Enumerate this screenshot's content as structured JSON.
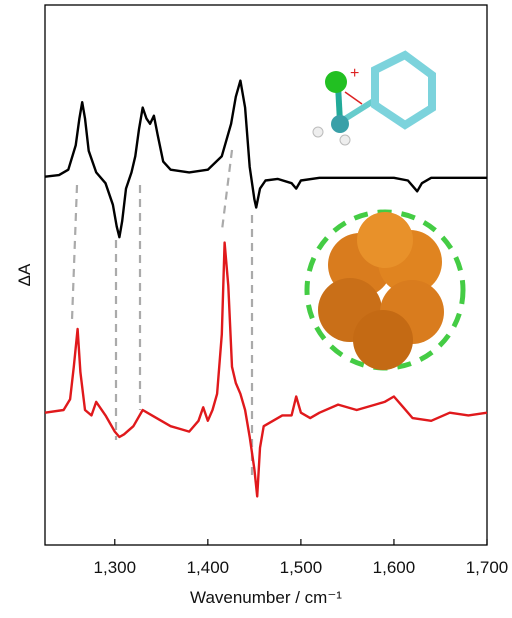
{
  "chart_data": {
    "type": "line",
    "x_label": "Wavenumber / cm⁻¹",
    "y_label": "ΔA",
    "xlim": [
      1225,
      1700
    ],
    "ylim": [
      0,
      10
    ],
    "xticks": [
      {
        "value": 1300,
        "label": "1,300"
      },
      {
        "value": 1400,
        "label": "1,400"
      },
      {
        "value": 1500,
        "label": "1,500"
      },
      {
        "value": 1600,
        "label": "1,600"
      },
      {
        "value": 1700,
        "label": "1,700"
      }
    ],
    "series": [
      {
        "color": "#000000",
        "x": [
          1225,
          1240,
          1250,
          1258,
          1262,
          1265,
          1268,
          1272,
          1280,
          1290,
          1298,
          1302,
          1305,
          1308,
          1312,
          1318,
          1322,
          1326,
          1330,
          1334,
          1338,
          1342,
          1346,
          1352,
          1360,
          1380,
          1400,
          1415,
          1425,
          1430,
          1435,
          1440,
          1445,
          1450,
          1452,
          1456,
          1462,
          1475,
          1490,
          1495,
          1500,
          1520,
          1560,
          1600,
          1615,
          1620,
          1625,
          1630,
          1640,
          1670,
          1700
        ],
        "values": [
          6.82,
          6.85,
          6.95,
          7.4,
          7.9,
          8.2,
          7.9,
          7.3,
          6.9,
          6.7,
          6.3,
          5.9,
          5.7,
          6.0,
          6.6,
          6.9,
          7.2,
          7.7,
          8.1,
          7.9,
          7.8,
          7.95,
          7.6,
          7.1,
          6.95,
          6.9,
          6.95,
          7.2,
          7.8,
          8.3,
          8.6,
          8.1,
          7.0,
          6.4,
          6.25,
          6.6,
          6.75,
          6.78,
          6.7,
          6.6,
          6.75,
          6.8,
          6.8,
          6.8,
          6.75,
          6.65,
          6.55,
          6.7,
          6.8,
          6.8,
          6.8
        ]
      },
      {
        "color": "#e0191c",
        "x": [
          1225,
          1245,
          1252,
          1256,
          1260,
          1263,
          1268,
          1275,
          1280,
          1290,
          1300,
          1305,
          1310,
          1320,
          1330,
          1340,
          1350,
          1360,
          1370,
          1380,
          1390,
          1395,
          1400,
          1405,
          1410,
          1415,
          1418,
          1422,
          1426,
          1430,
          1435,
          1440,
          1445,
          1450,
          1453,
          1456,
          1460,
          1470,
          1480,
          1490,
          1495,
          1500,
          1510,
          1520,
          1540,
          1560,
          1580,
          1590,
          1600,
          1610,
          1620,
          1640,
          1660,
          1680,
          1700
        ],
        "values": [
          2.45,
          2.5,
          2.7,
          3.3,
          4.0,
          3.2,
          2.5,
          2.4,
          2.65,
          2.4,
          2.1,
          2.0,
          2.05,
          2.2,
          2.5,
          2.4,
          2.3,
          2.2,
          2.15,
          2.1,
          2.3,
          2.55,
          2.3,
          2.5,
          2.8,
          3.9,
          5.6,
          4.8,
          3.3,
          3.0,
          2.8,
          2.5,
          2.0,
          1.4,
          0.9,
          1.8,
          2.2,
          2.3,
          2.4,
          2.4,
          2.75,
          2.45,
          2.35,
          2.45,
          2.6,
          2.5,
          2.6,
          2.65,
          2.75,
          2.55,
          2.35,
          2.3,
          2.45,
          2.4,
          2.45
        ]
      }
    ]
  }
}
